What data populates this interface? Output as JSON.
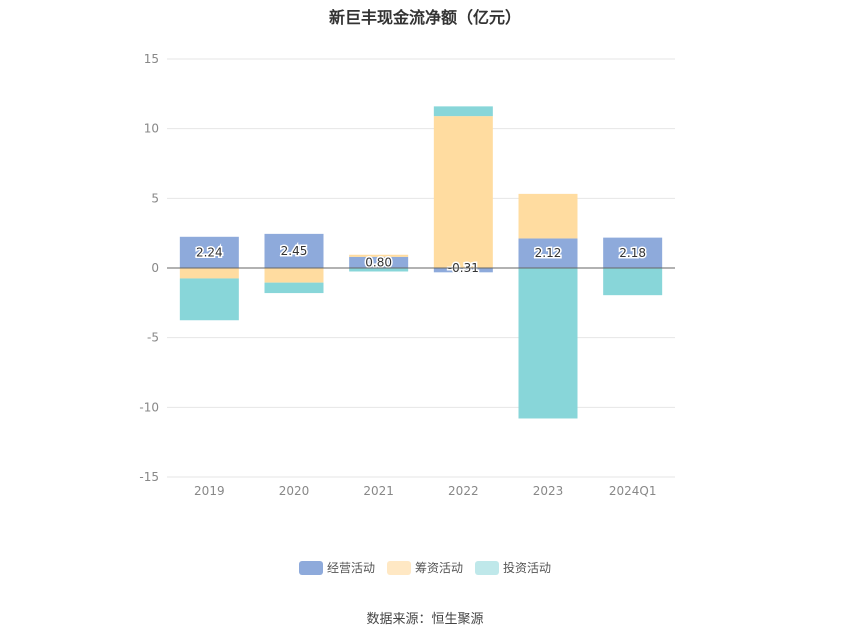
{
  "title": "新巨丰现金流净额（亿元）",
  "source": "数据来源：恒生聚源",
  "colors": {
    "operating": "#8eaadb",
    "financing": "#ffdca0",
    "investing": "#88d6d9"
  },
  "chart_data": {
    "type": "bar",
    "stacked": true,
    "title": "新巨丰现金流净额（亿元）",
    "categories": [
      "2019",
      "2020",
      "2021",
      "2022",
      "2023",
      "2024Q1"
    ],
    "ylim": [
      -15,
      15
    ],
    "yticks": [
      "15",
      "10",
      "5",
      "0",
      "-5",
      "-10",
      "-15"
    ],
    "grid": true,
    "legend_position": "bottom",
    "series": [
      {
        "name": "经营活动",
        "values": [
          2.24,
          2.45,
          0.8,
          -0.31,
          2.12,
          2.18
        ],
        "labels": [
          "2.24",
          "2.45",
          "0.80",
          "-0.31",
          "2.12",
          "2.18"
        ]
      },
      {
        "name": "筹资活动",
        "values": [
          -0.75,
          -1.05,
          0.15,
          10.9,
          3.2,
          0.0
        ]
      },
      {
        "name": "投资活动",
        "values": [
          -3.0,
          -0.75,
          -0.25,
          0.7,
          -10.8,
          -1.95
        ]
      }
    ]
  }
}
